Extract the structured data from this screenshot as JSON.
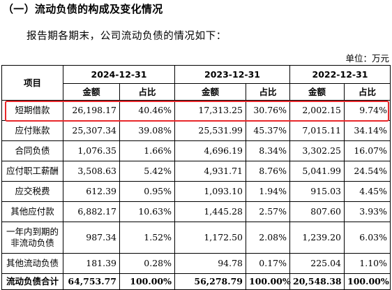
{
  "section_title": "（一）流动负债的构成及变化情况",
  "intro_text": "报告期各期末，公司流动负债的情况如下：",
  "unit_label": "单位：万元",
  "table": {
    "item_header": "项目",
    "periods": [
      "2024-12-31",
      "2023-12-31",
      "2022-12-31"
    ],
    "amount_header": "金额",
    "ratio_header": "占比",
    "rows": [
      {
        "label": "短期借款",
        "values": [
          "26,198.17",
          "40.46%",
          "17,313.25",
          "30.76%",
          "2,002.15",
          "9.74%"
        ]
      },
      {
        "label": "应付账款",
        "values": [
          "25,307.34",
          "39.08%",
          "25,531.99",
          "45.37%",
          "7,015.11",
          "34.14%"
        ]
      },
      {
        "label": "合同负债",
        "values": [
          "1,076.35",
          "1.66%",
          "4,696.19",
          "8.34%",
          "3,302.25",
          "16.07%"
        ]
      },
      {
        "label": "应付职工薪酬",
        "values": [
          "3,508.63",
          "5.42%",
          "4,931.71",
          "8.76%",
          "5,041.99",
          "24.54%"
        ]
      },
      {
        "label": "应交税费",
        "values": [
          "612.39",
          "0.95%",
          "1,093.10",
          "1.94%",
          "915.03",
          "4.45%"
        ]
      },
      {
        "label": "其他应付款",
        "values": [
          "6,882.17",
          "10.63%",
          "1,445.28",
          "2.57%",
          "807.60",
          "3.93%"
        ]
      },
      {
        "label": "一年内到期的非流动负债",
        "values": [
          "987.34",
          "1.52%",
          "1,172.50",
          "2.08%",
          "1,239.20",
          "6.03%"
        ]
      },
      {
        "label": "其他流动负债",
        "values": [
          "181.39",
          "0.28%",
          "94.78",
          "0.17%",
          "225.04",
          "1.10%"
        ]
      }
    ],
    "total": {
      "label": "流动负债合计",
      "values": [
        "64,753.77",
        "100.00%",
        "56,278.79",
        "100.00%",
        "20,548.38",
        "100.00%"
      ]
    }
  },
  "highlight_color": "#e8282b"
}
